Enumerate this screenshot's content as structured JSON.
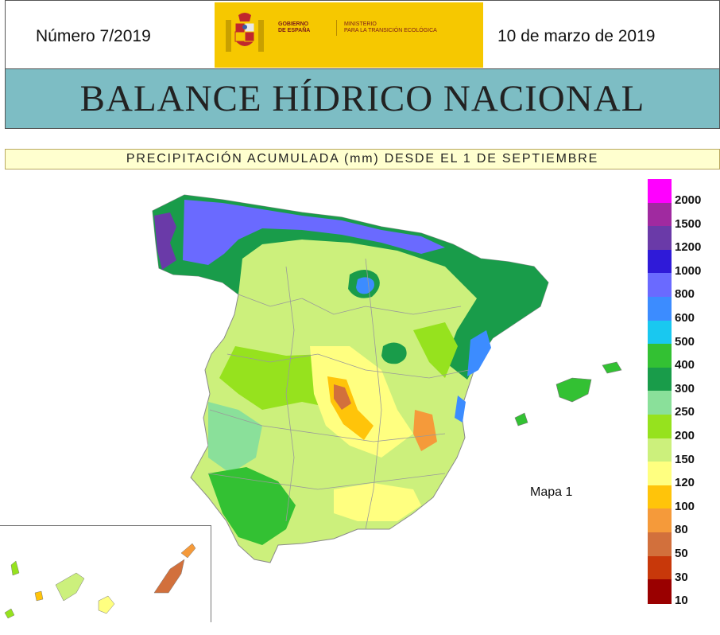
{
  "header": {
    "issue": "Número 7/2019",
    "date": "10 de marzo de 2019",
    "gov_label_1": "GOBIERNO\nDE ESPAÑA",
    "gov_label_2": "MINISTERIO\nPARA LA TRANSICIÓN ECOLÓGICA",
    "gov_color": "#f6c800"
  },
  "title": "BALANCE HÍDRICO NACIONAL",
  "subtitle": "PRECIPITACIÓN ACUMULADA (mm) DESDE EL 1 DE SEPTIEMBRE",
  "map_label": "Mapa 1",
  "legend": [
    {
      "label": "2000",
      "color": "#ff00ff"
    },
    {
      "label": "1500",
      "color": "#a02aa0"
    },
    {
      "label": "1200",
      "color": "#6a3aa8"
    },
    {
      "label": "1000",
      "color": "#2f1ad8"
    },
    {
      "label": "800",
      "color": "#6a6aff"
    },
    {
      "label": "600",
      "color": "#3c8cff"
    },
    {
      "label": "500",
      "color": "#19c8f0"
    },
    {
      "label": "400",
      "color": "#33c133"
    },
    {
      "label": "300",
      "color": "#199c4a"
    },
    {
      "label": "250",
      "color": "#8ae09a"
    },
    {
      "label": "200",
      "color": "#96e21e"
    },
    {
      "label": "150",
      "color": "#ccf07c"
    },
    {
      "label": "120",
      "color": "#ffff80"
    },
    {
      "label": "100",
      "color": "#ffc40a"
    },
    {
      "label": "80",
      "color": "#f59a3a"
    },
    {
      "label": "50",
      "color": "#d2703c"
    },
    {
      "label": "30",
      "color": "#c8380a"
    },
    {
      "label": "10",
      "color": "#9a0000"
    }
  ]
}
